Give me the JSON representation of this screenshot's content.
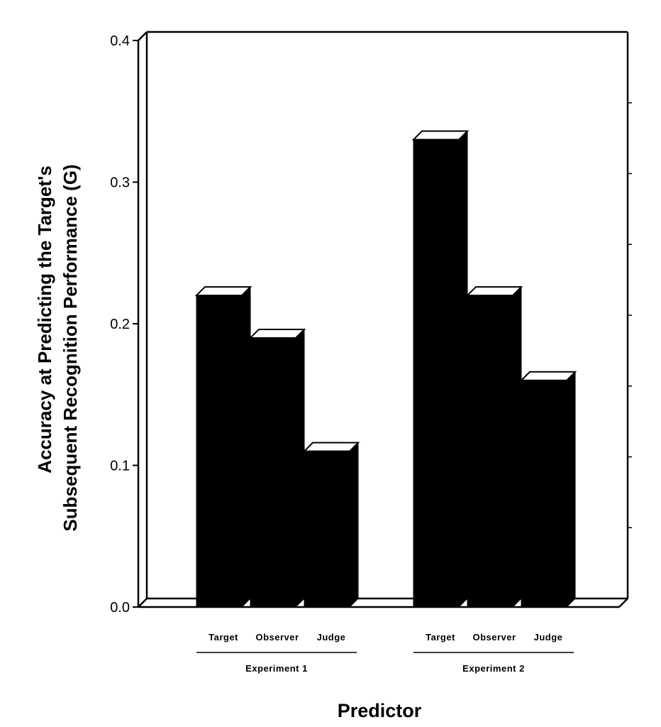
{
  "chart_data": {
    "type": "bar",
    "groups": [
      {
        "name": "Experiment 1",
        "categories": [
          "Target",
          "Observer",
          "Judge"
        ],
        "values": [
          0.22,
          0.19,
          0.11
        ]
      },
      {
        "name": "Experiment 2",
        "categories": [
          "Target",
          "Observer",
          "Judge"
        ],
        "values": [
          0.33,
          0.22,
          0.16
        ]
      }
    ],
    "xlabel": "Predictor",
    "ylabel_lines": [
      "Accuracy at Predicting the Target's",
      "Subsequent Recognition Performance (G)"
    ],
    "ylim": [
      0,
      0.4
    ],
    "yticks": [
      "0.0",
      "0.1",
      "0.2",
      "0.3",
      "0.4"
    ],
    "bar_color": "#000000",
    "bar_top_color": "#ffffff",
    "style": "3d"
  }
}
